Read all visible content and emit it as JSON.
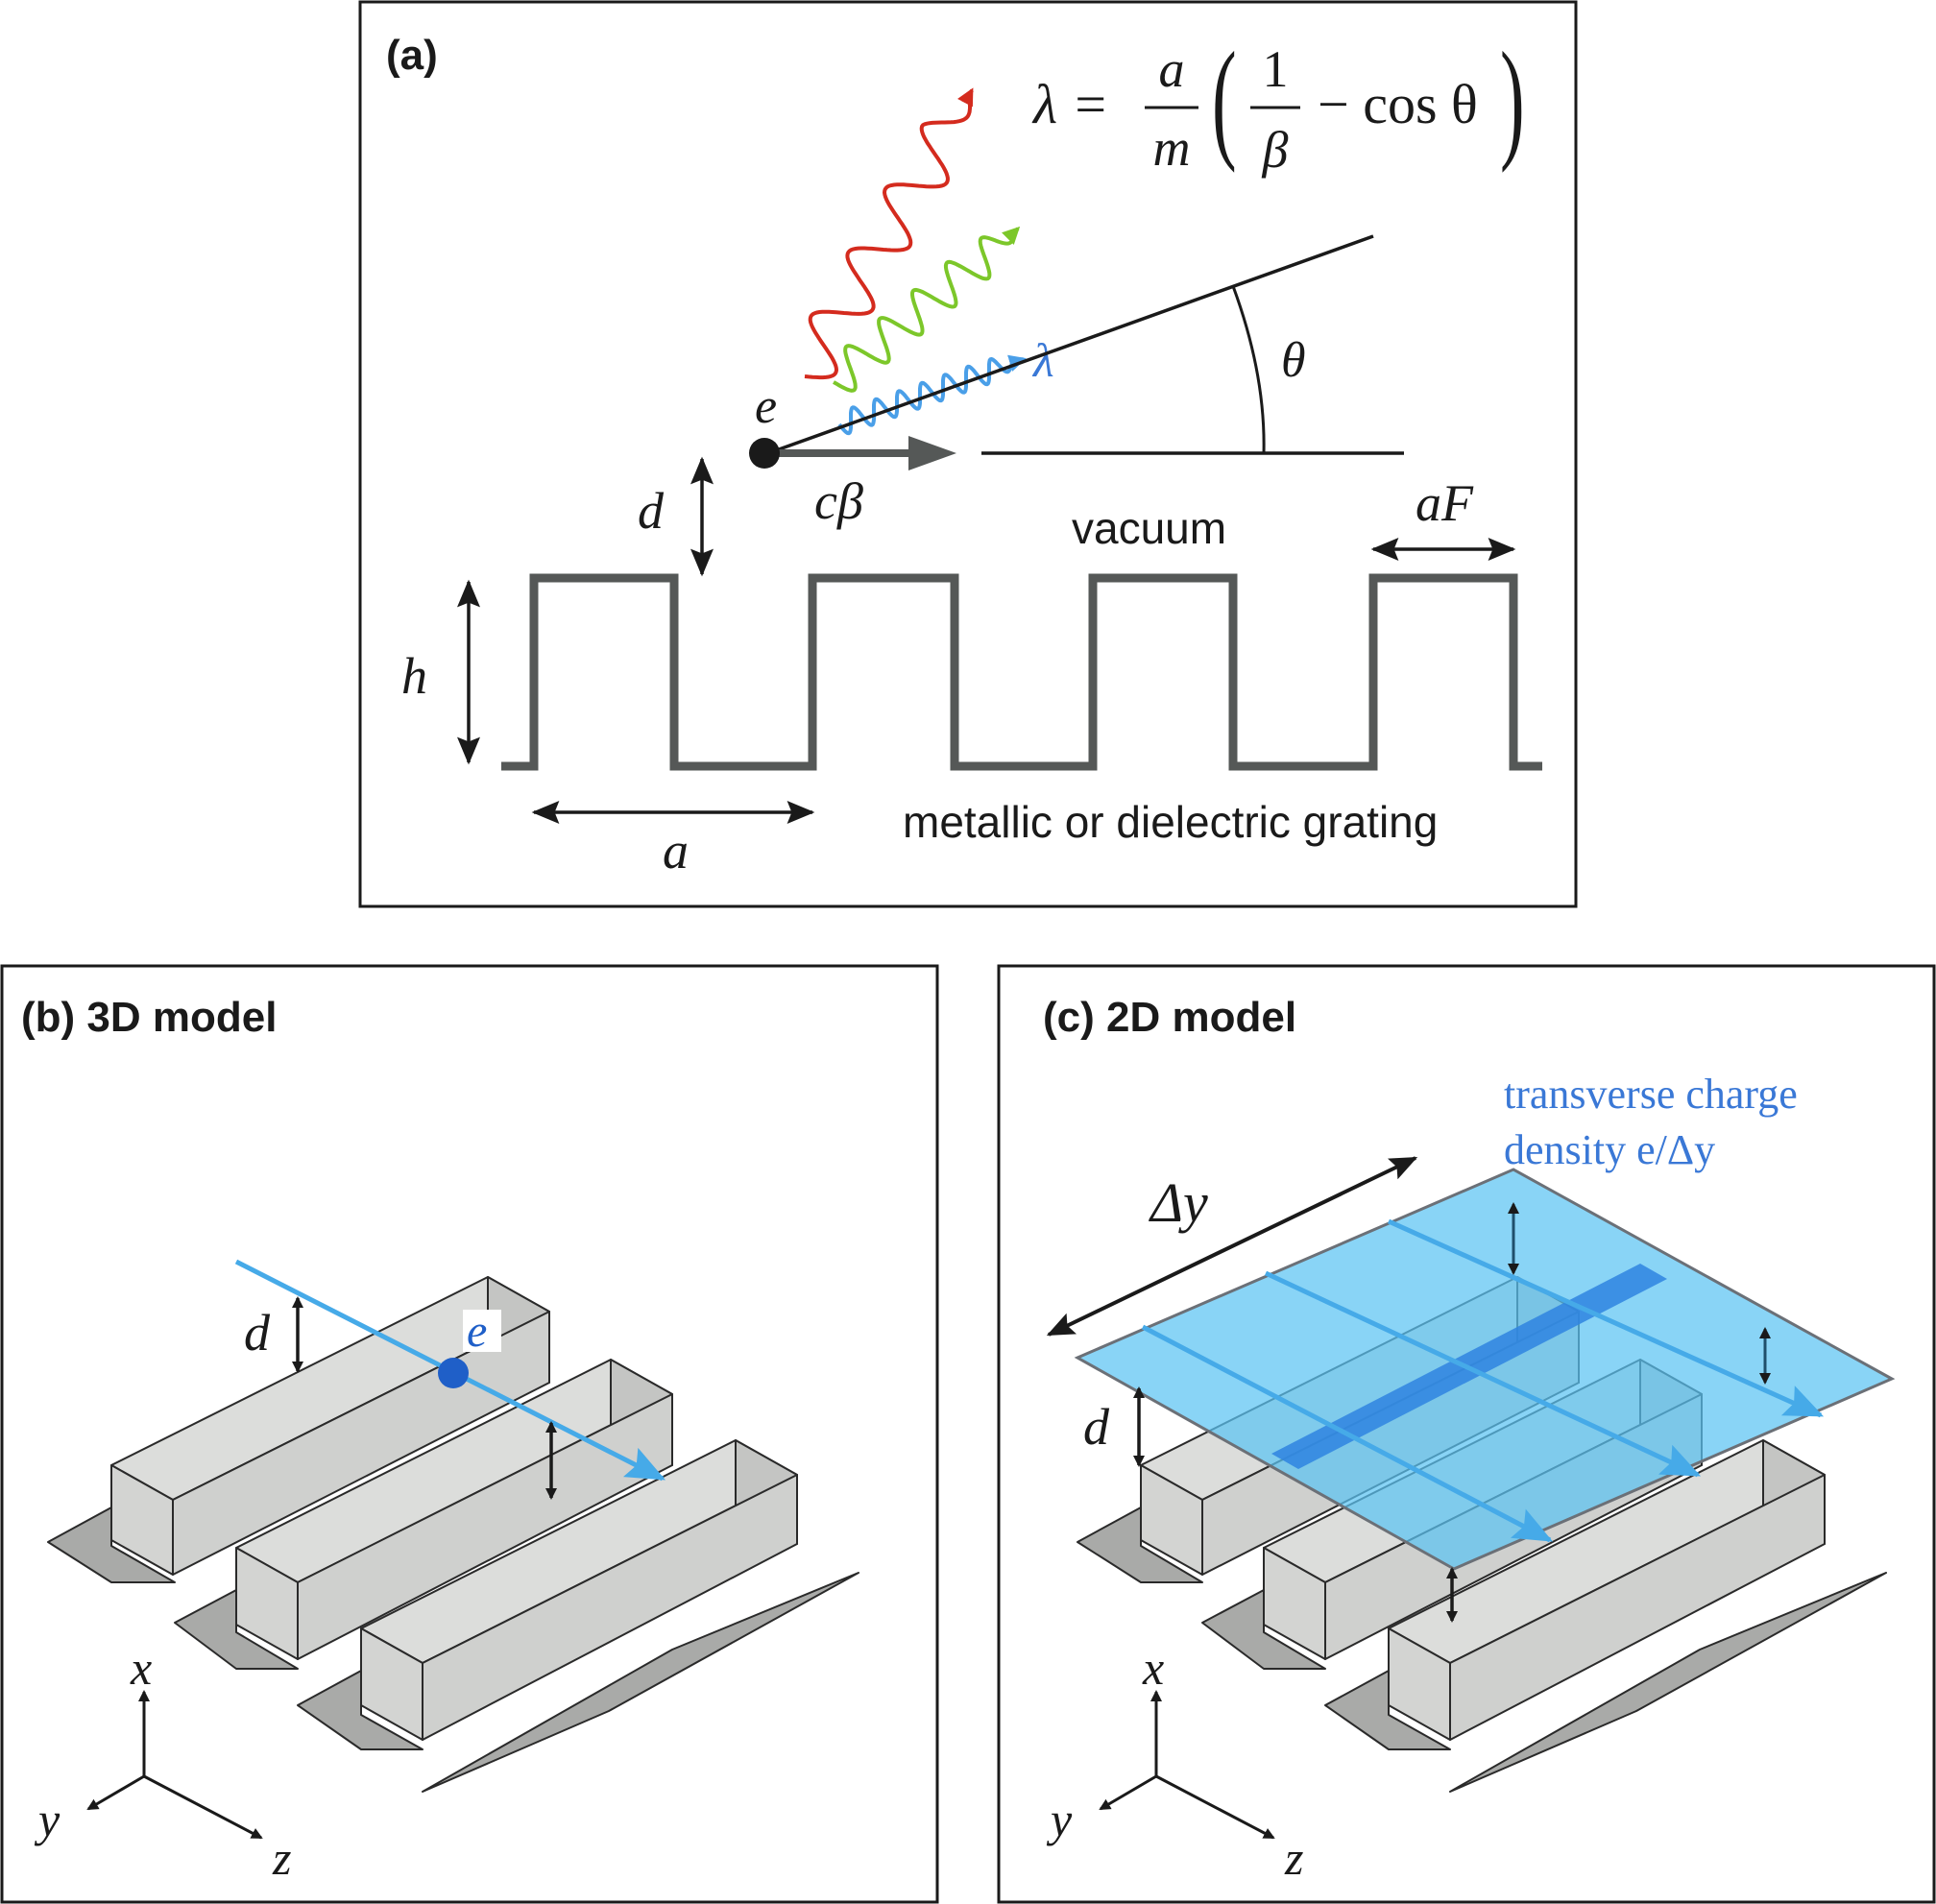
{
  "panel_a": {
    "label": "(a)",
    "formula": {
      "lhs": "λ = ",
      "frac1_num": "a",
      "frac1_den": "m",
      "frac2_num": "1",
      "frac2_den": "β",
      "rest": "− cos θ"
    },
    "electron_label": "e",
    "wavelength_label": "λ",
    "angle_label": "θ",
    "velocity_label": "cβ",
    "distance_label": "d",
    "height_label": "h",
    "period_label": "a",
    "tooth_width_label": "aF",
    "vacuum_label": "vacuum",
    "grating_label": "metallic or dielectric grating",
    "wave_colors": {
      "red": "#d42b1e",
      "green": "#7cc72a",
      "blue": "#4a9fe8"
    }
  },
  "panel_b": {
    "label": "(b) 3D model",
    "distance_label": "d",
    "electron_label": "e",
    "axes": {
      "x": "x",
      "y": "y",
      "z": "z"
    }
  },
  "panel_c": {
    "label": "(c) 2D model",
    "sheet_label_line1": "transverse charge",
    "sheet_label_line2": "density e/Δy",
    "width_label": "Δy",
    "distance_label": "d",
    "axes": {
      "x": "x",
      "y": "y",
      "z": "z"
    }
  },
  "colors": {
    "grating_fill": "#d3d4d2",
    "grating_shadow": "#a9aaa8",
    "beam_blue": "#46aae8",
    "electron_blue": "#1f5fc8",
    "sheet_blue": "#5cc4f3",
    "label_blue": "#3a78d6"
  }
}
